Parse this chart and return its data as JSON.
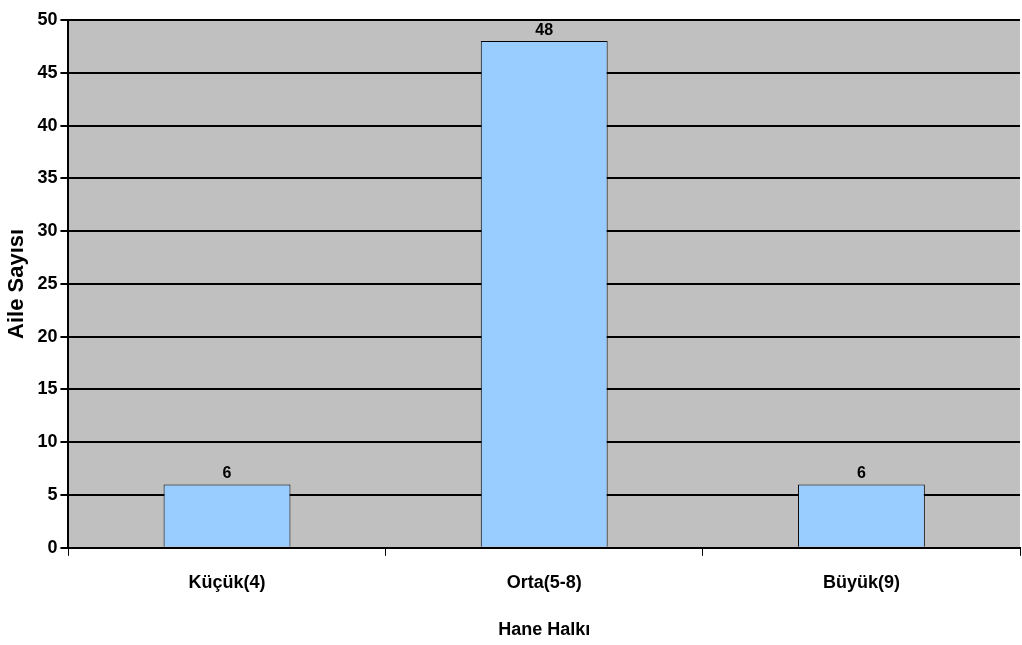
{
  "chart_data": {
    "type": "bar",
    "xlabel": "Hane Halkı",
    "ylabel": "Aile Sayısı",
    "categories": [
      "Küçük(4)",
      "Orta(5-8)",
      "Büyük(9)"
    ],
    "values": [
      6,
      48,
      6
    ],
    "color": "#99ccff",
    "ylim": [
      0,
      50
    ],
    "yticks": [
      0,
      5,
      10,
      15,
      20,
      25,
      30,
      35,
      40,
      45,
      50
    ],
    "grid": "y",
    "data_labels": true
  }
}
